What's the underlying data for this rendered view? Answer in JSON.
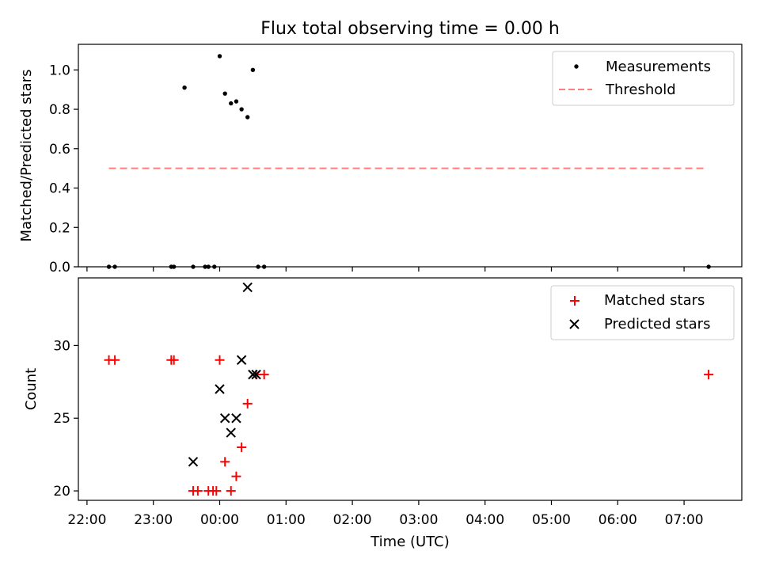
{
  "chart_data": [
    {
      "type": "scatter",
      "title": "Flux total observing time = 0.00 h",
      "xlabel": "",
      "ylabel": "Matched/Predicted stars",
      "ylim": [
        0.0,
        1.13
      ],
      "yticks": [
        0.0,
        0.2,
        0.4,
        0.6,
        0.8,
        1.0
      ],
      "ytick_labels": [
        "0.0",
        "0.2",
        "0.4",
        "0.6",
        "0.8",
        "1.0"
      ],
      "xlim_hours": [
        21.87,
        31.87
      ],
      "legend_position": "top-right",
      "grid": false,
      "series": [
        {
          "name": "Measurements",
          "marker": "dot",
          "color": "#000000",
          "x": [
            22.33,
            22.42,
            23.27,
            23.31,
            23.47,
            23.6,
            23.78,
            23.83,
            23.92,
            24.0,
            24.08,
            24.17,
            24.25,
            24.33,
            24.42,
            24.5,
            24.58,
            24.67,
            31.37
          ],
          "y": [
            0.0,
            0.0,
            0.0,
            0.0,
            0.91,
            0.0,
            0.0,
            0.0,
            0.0,
            1.07,
            0.88,
            0.83,
            0.84,
            0.8,
            0.76,
            1.0,
            0.0,
            0.0,
            0.0
          ]
        },
        {
          "name": "Threshold",
          "marker": "dashed-line",
          "color": "#ff7f7f",
          "x": [
            22.33,
            31.33
          ],
          "y": [
            0.5,
            0.5
          ]
        }
      ]
    },
    {
      "type": "scatter",
      "title": "",
      "xlabel": "Time (UTC)",
      "ylabel": "Count",
      "ylim": [
        19.35,
        34.65
      ],
      "yticks": [
        20,
        25,
        30
      ],
      "ytick_labels": [
        "20",
        "25",
        "30"
      ],
      "xlim_hours": [
        21.87,
        31.87
      ],
      "xticks_hours": [
        22,
        23,
        24,
        25,
        26,
        27,
        28,
        29,
        30,
        31
      ],
      "xtick_labels": [
        "22:00",
        "23:00",
        "00:00",
        "01:00",
        "02:00",
        "03:00",
        "04:00",
        "05:00",
        "06:00",
        "07:00"
      ],
      "legend_position": "top-right",
      "grid": false,
      "series": [
        {
          "name": "Matched stars",
          "marker": "plus",
          "color": "#ff0000",
          "x": [
            22.33,
            22.42,
            23.27,
            23.31,
            23.6,
            23.67,
            23.83,
            23.9,
            23.95,
            24.0,
            24.08,
            24.17,
            24.25,
            24.33,
            24.42,
            24.55,
            24.67,
            31.37
          ],
          "y": [
            29,
            29,
            29,
            29,
            20,
            20,
            20,
            20,
            20,
            29,
            22,
            20,
            21,
            23,
            26,
            28,
            28,
            28
          ]
        },
        {
          "name": "Predicted stars",
          "marker": "x",
          "color": "#000000",
          "x": [
            23.6,
            24.0,
            24.08,
            24.17,
            24.25,
            24.33,
            24.42,
            24.5,
            24.55
          ],
          "y": [
            22,
            27,
            25,
            24,
            25,
            29,
            34,
            28,
            28
          ]
        }
      ]
    }
  ]
}
